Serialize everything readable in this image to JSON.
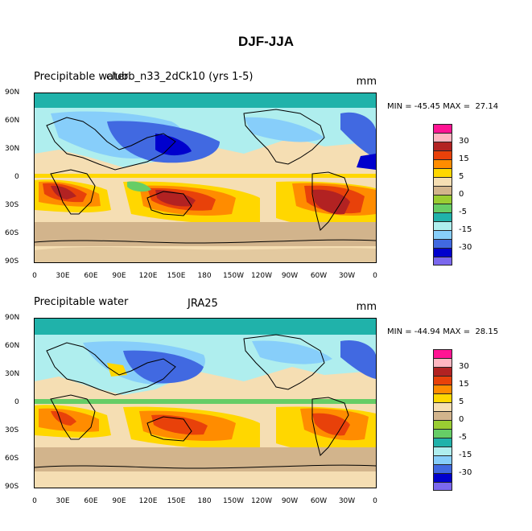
{
  "figure": {
    "title": "DJF-JJA"
  },
  "panels": [
    {
      "left_title": "Precipitable water",
      "center_title": "clubb_n33_2dCk10 (yrs 1-5)",
      "units": "mm",
      "min_max": "MIN = -45.45 MAX =  27.14"
    },
    {
      "left_title": "Precipitable water",
      "center_title": "JRA25",
      "units": "mm",
      "min_max": "MIN = -44.94 MAX =  28.15"
    }
  ],
  "axes": {
    "lat_ticks": [
      "90N",
      "60N",
      "30N",
      "0",
      "30S",
      "60S",
      "90S"
    ],
    "lon_ticks": [
      "0",
      "30E",
      "60E",
      "90E",
      "120E",
      "150E",
      "180",
      "150W",
      "120W",
      "90W",
      "60W",
      "30W",
      "0"
    ]
  },
  "colorbar": {
    "labels": [
      "30",
      "15",
      "5",
      "0",
      "-5",
      "-15",
      "-30"
    ],
    "colors": [
      "#ff1493",
      "#ffb6c1",
      "#b22222",
      "#e8410a",
      "#ff8c00",
      "#ffd700",
      "#f5deb3",
      "#d2b48c",
      "#9acd32",
      "#66cd66",
      "#20b2aa",
      "#afeeee",
      "#87cefa",
      "#4169e1",
      "#0000cd",
      "#7b68ee"
    ]
  }
}
